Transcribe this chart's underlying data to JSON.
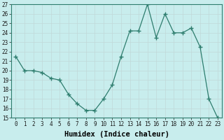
{
  "xlabel": "Humidex (Indice chaleur)",
  "x": [
    0,
    1,
    2,
    3,
    4,
    5,
    6,
    7,
    8,
    9,
    10,
    11,
    12,
    13,
    14,
    15,
    16,
    17,
    18,
    19,
    20,
    21,
    22,
    23
  ],
  "y": [
    21.5,
    20.0,
    20.0,
    19.8,
    19.2,
    19.0,
    17.5,
    16.5,
    15.8,
    15.8,
    17.0,
    18.5,
    21.5,
    24.2,
    24.2,
    27.0,
    23.5,
    26.0,
    24.0,
    24.0,
    24.5,
    22.5,
    17.0,
    15.0
  ],
  "line_color": "#2e7d6e",
  "marker": "+",
  "marker_size": 4,
  "bg_color": "#c8eded",
  "grid_color": "#b8d0d0",
  "ylim": [
    15,
    27
  ],
  "yticks": [
    15,
    16,
    17,
    18,
    19,
    20,
    21,
    22,
    23,
    24,
    25,
    26,
    27
  ],
  "xticks": [
    0,
    1,
    2,
    3,
    4,
    5,
    6,
    7,
    8,
    9,
    10,
    11,
    12,
    13,
    14,
    15,
    16,
    17,
    18,
    19,
    20,
    21,
    22,
    23
  ],
  "tick_fontsize": 5.5,
  "xlabel_fontsize": 7.5
}
